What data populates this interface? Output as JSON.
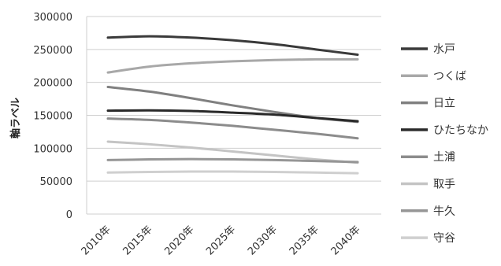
{
  "chart_data": {
    "type": "line",
    "title": "",
    "xlabel": "",
    "ylabel": "軸ラベル",
    "ylim": [
      0,
      300000
    ],
    "yticks": [
      0,
      50000,
      100000,
      150000,
      200000,
      250000,
      300000
    ],
    "ytick_labels": [
      "0",
      "50000",
      "100000",
      "150000",
      "200000",
      "250000",
      "300000"
    ],
    "categories": [
      "2010年",
      "2015年",
      "2020年",
      "2025年",
      "2030年",
      "2035年",
      "2040年"
    ],
    "grid": "horizontal",
    "legend_position": "right",
    "series": [
      {
        "name": "水戸",
        "color": "#3a3a3a",
        "values": [
          268000,
          270000,
          268000,
          264000,
          258000,
          250000,
          242000
        ]
      },
      {
        "name": "つくば",
        "color": "#a8a8a8",
        "values": [
          215000,
          224000,
          229000,
          232000,
          234000,
          235000,
          235000
        ]
      },
      {
        "name": "日立",
        "color": "#808080",
        "values": [
          193000,
          186000,
          176000,
          165000,
          155000,
          146000,
          140000
        ]
      },
      {
        "name": "ひたちなか",
        "color": "#2a2a2a",
        "values": [
          157000,
          157500,
          156500,
          154000,
          151000,
          146000,
          141000
        ]
      },
      {
        "name": "土浦",
        "color": "#8c8c8c",
        "values": [
          145000,
          143000,
          139000,
          134000,
          128000,
          122000,
          115000
        ]
      },
      {
        "name": "取手",
        "color": "#c4c4c4",
        "values": [
          110000,
          106000,
          101000,
          95000,
          89000,
          83000,
          78000
        ]
      },
      {
        "name": "牛久",
        "color": "#969696",
        "values": [
          82000,
          83000,
          83500,
          83000,
          82000,
          80500,
          79000
        ]
      },
      {
        "name": "守谷",
        "color": "#cfcfcf",
        "values": [
          63000,
          64000,
          64500,
          64500,
          64000,
          63000,
          62000
        ]
      }
    ]
  }
}
